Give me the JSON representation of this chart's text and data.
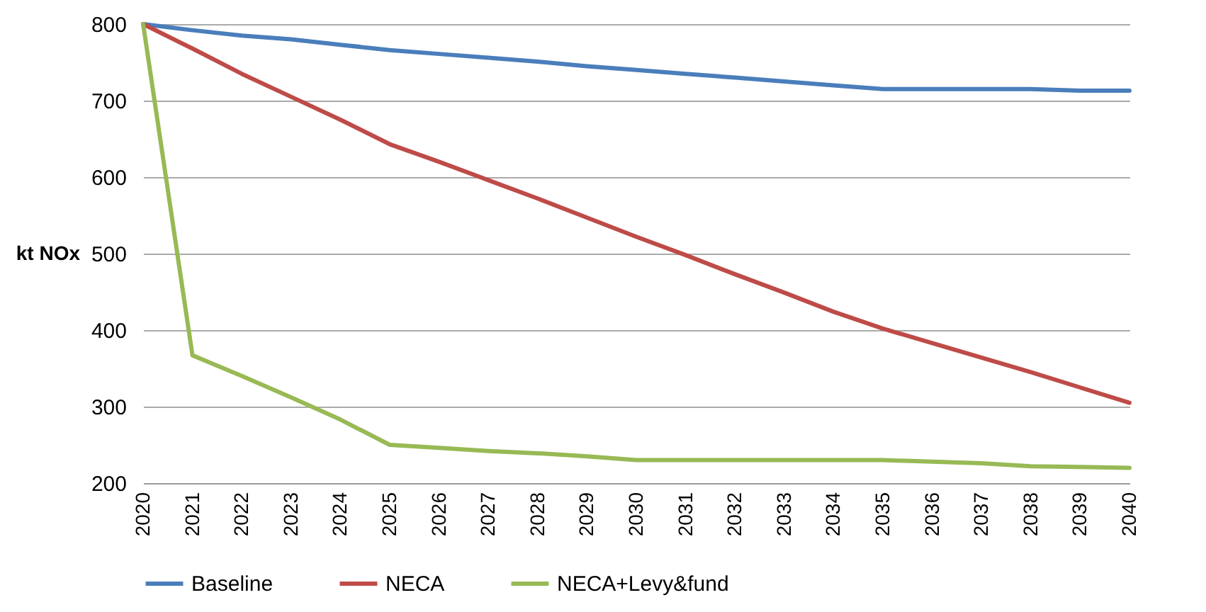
{
  "chart_data": {
    "type": "line",
    "ylabel": "kt NOx",
    "categories": [
      "2020",
      "2021",
      "2022",
      "2023",
      "2024",
      "2025",
      "2026",
      "2027",
      "2028",
      "2029",
      "2030",
      "2031",
      "2032",
      "2033",
      "2034",
      "2035",
      "2036",
      "2037",
      "2038",
      "2039",
      "2040"
    ],
    "series": [
      {
        "name": "Baseline",
        "color": "#4a7ebb",
        "values": [
          800,
          792,
          785,
          780,
          773,
          766,
          761,
          756,
          751,
          745,
          740,
          735,
          730,
          725,
          720,
          715,
          715,
          715,
          715,
          713,
          713
        ]
      },
      {
        "name": "NECA",
        "color": "#be4b48",
        "values": [
          800,
          768,
          735,
          705,
          675,
          643,
          620,
          596,
          572,
          547,
          522,
          498,
          473,
          449,
          424,
          402,
          383,
          364,
          345,
          325,
          305
        ]
      },
      {
        "name": "NECA+Levy&fund",
        "color": "#98b954",
        "values": [
          800,
          367,
          340,
          312,
          283,
          250,
          246,
          242,
          239,
          235,
          230,
          230,
          230,
          230,
          230,
          230,
          228,
          226,
          222,
          221,
          220
        ]
      }
    ],
    "ylim": [
      200,
      800
    ],
    "yticks": [
      200,
      300,
      400,
      500,
      600,
      700,
      800
    ],
    "grid": "y",
    "legend": "bottom",
    "marker": "none",
    "line_style": "solid"
  }
}
